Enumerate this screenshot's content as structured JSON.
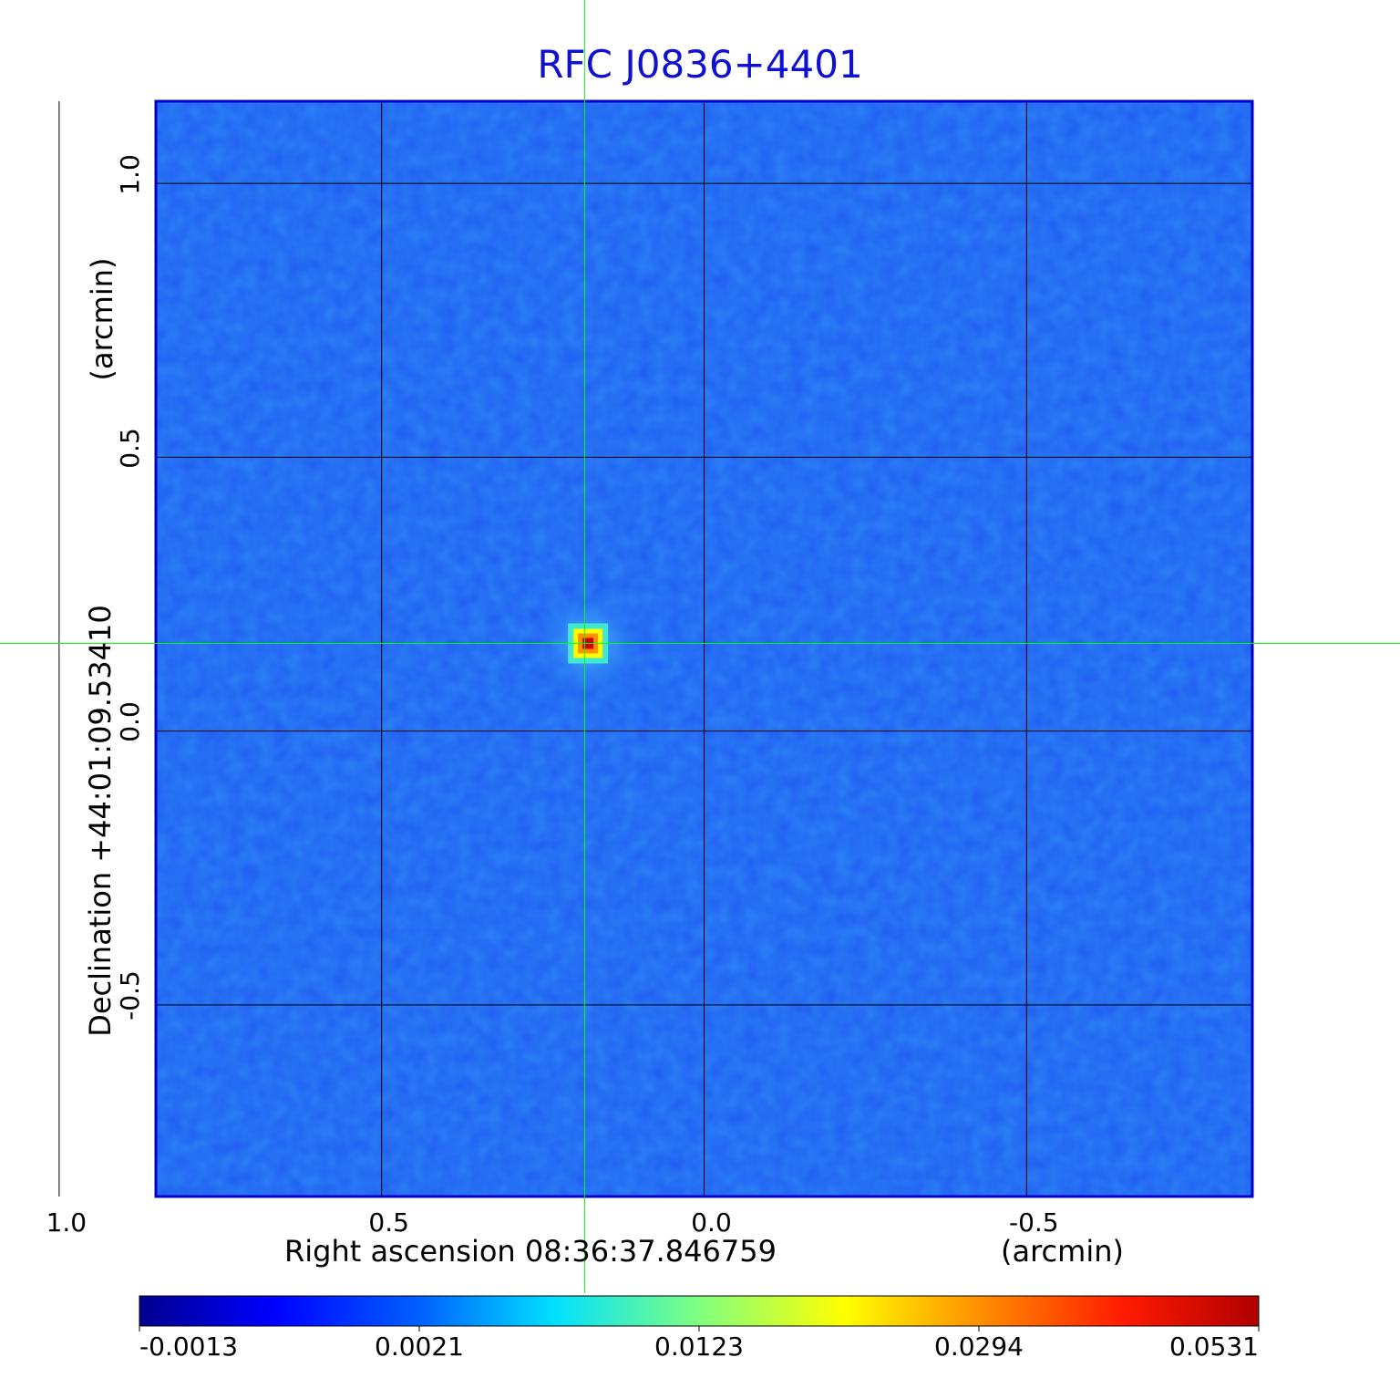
{
  "chart_data": {
    "type": "heatmap",
    "title": "RFC J0836+4401",
    "xlabel": "Right ascension  08:36:37.846759",
    "xunit": "(arcmin)",
    "ylabel": "Declination  +44:01:09.53410",
    "yunit": "(arcmin)",
    "xlim": [
      0.85,
      -0.85
    ],
    "ylim": [
      -0.85,
      1.15
    ],
    "x_ticks": [
      1.0,
      0.5,
      0.0,
      -0.5
    ],
    "x_tick_labels": [
      "1.0",
      "0.5",
      "0.0",
      "-0.5"
    ],
    "y_ticks": [
      1.0,
      0.5,
      0.0,
      -0.5
    ],
    "y_tick_labels": [
      "1.0",
      "0.5",
      "0.0",
      "-0.5"
    ],
    "grid": true,
    "crosshair": {
      "x": 0.185,
      "y": 0.16
    },
    "source_peak": {
      "x": 0.18,
      "y": 0.16,
      "value": 0.0531
    },
    "colorbar": {
      "colormap": "jet",
      "tick_values": [
        -0.0013,
        0.0021,
        0.0123,
        0.0294,
        0.0531
      ],
      "tick_labels": [
        "-0.0013",
        "0.0021",
        "0.0123",
        "0.0294",
        "0.0531"
      ],
      "range": [
        -0.0013,
        0.0531
      ]
    },
    "colors": {
      "background_map": "#1f5cf0",
      "crosshair": "#00ff00",
      "grid": "#000000",
      "frame": "#0000cc",
      "title": "#1010d0"
    }
  }
}
